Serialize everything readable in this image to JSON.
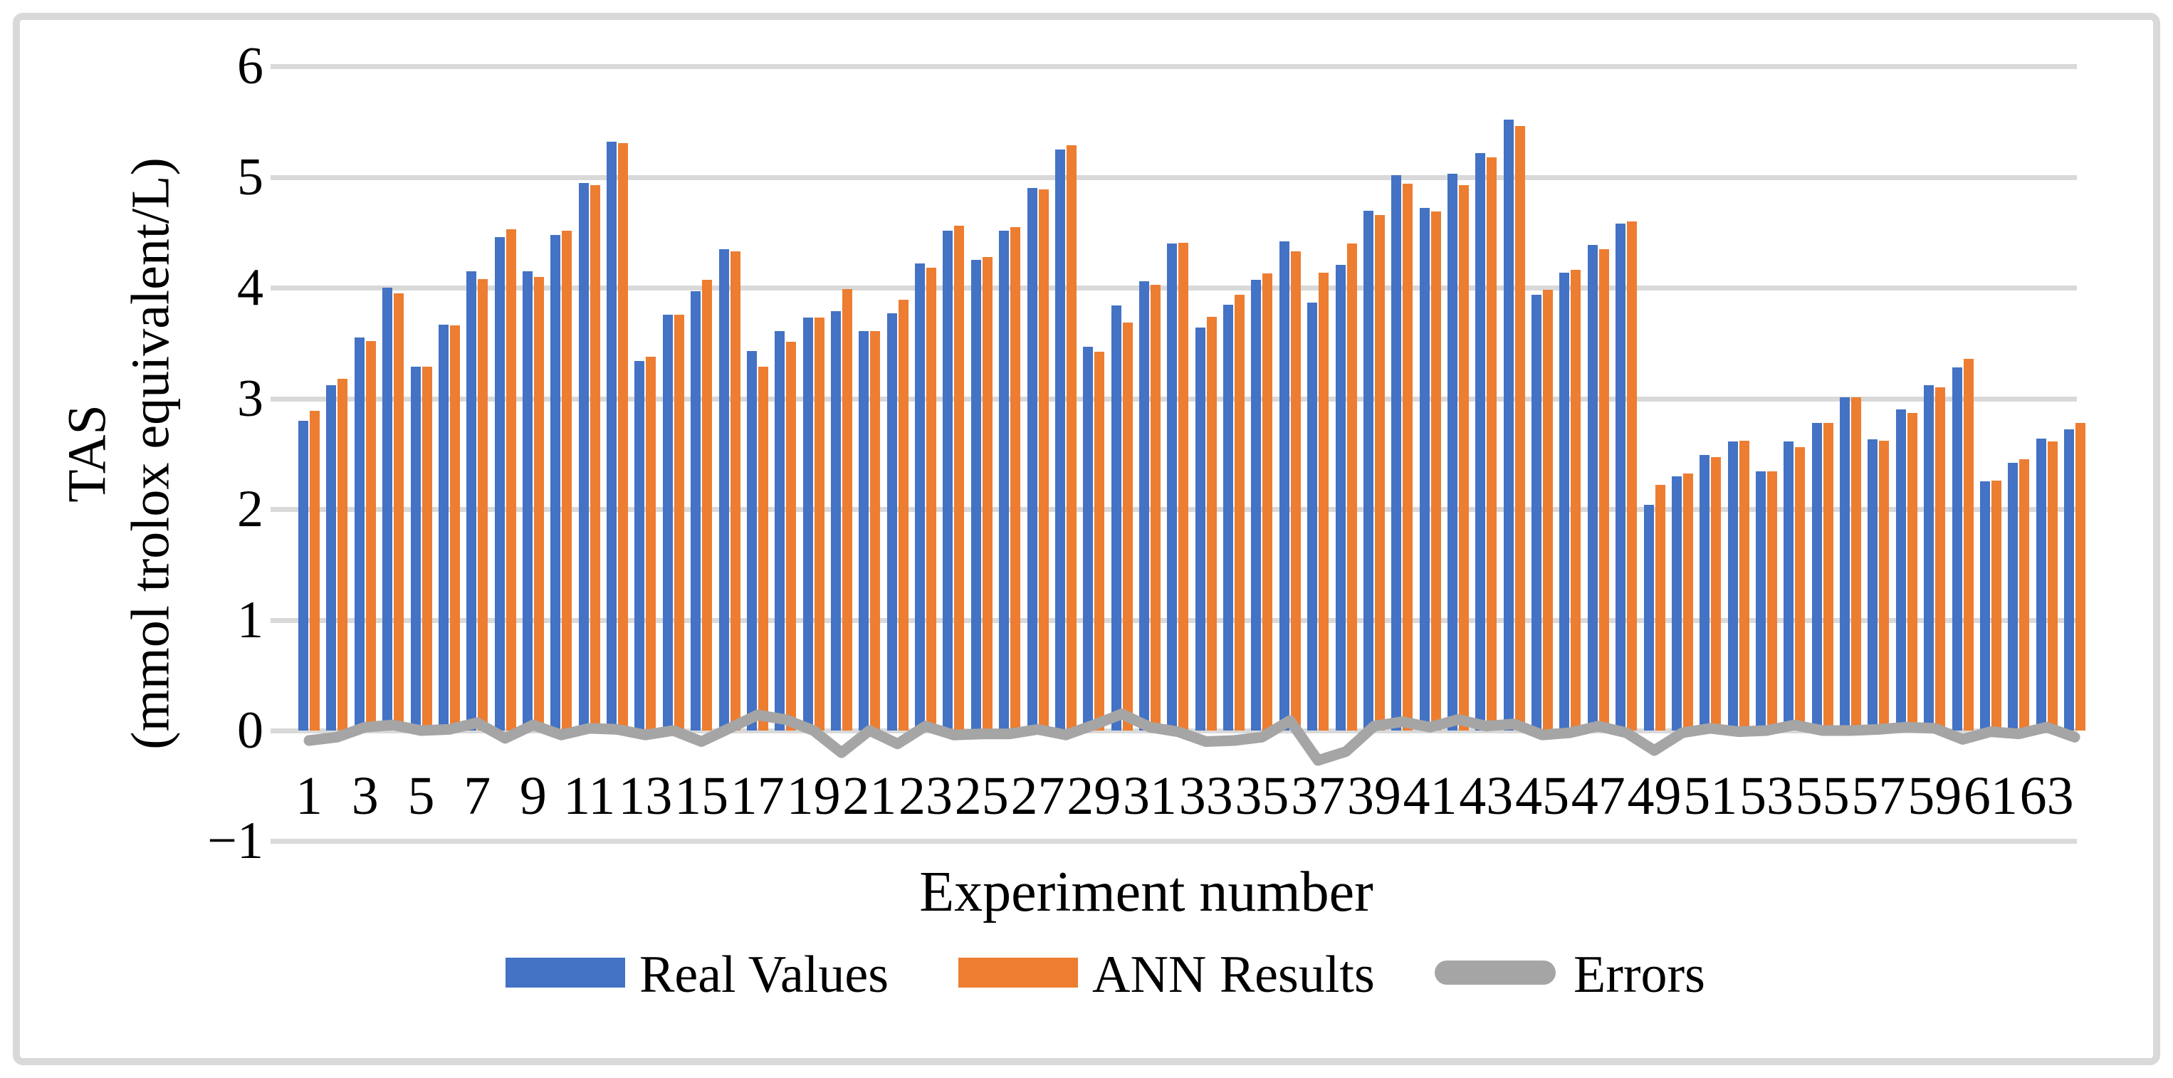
{
  "figure": {
    "x_axis_title": "Experiment number",
    "y_axis_title_line1": "TAS",
    "y_axis_title_line2": "(mmol trolox equivalent/L)"
  },
  "legend": {
    "real_label": "Real Values",
    "ann_label": "ANN Results",
    "errors_label": "Errors"
  },
  "colors": {
    "real": "#4472C4",
    "ann": "#ED7D31",
    "errors": "#A5A5A5",
    "gridline": "#D9D9D9",
    "frame": "#D9D9D9"
  },
  "y_axis": {
    "tick_labels": [
      "6",
      "5",
      "4",
      "3",
      "2",
      "1",
      "0",
      "−1"
    ],
    "tick_values": [
      6,
      5,
      4,
      3,
      2,
      1,
      0,
      -1
    ]
  },
  "x_axis": {
    "shown_tick_labels": [
      "1",
      "3",
      "5",
      "7",
      "9",
      "11",
      "13",
      "15",
      "17",
      "19",
      "21",
      "23",
      "25",
      "27",
      "29",
      "31",
      "33",
      "35",
      "37",
      "39",
      "41",
      "43",
      "45",
      "47",
      "49",
      "51",
      "53",
      "55",
      "57",
      "59",
      "61",
      "63"
    ]
  },
  "chart_data": {
    "type": "bar",
    "subtype": "grouped-bars-with-line",
    "title": "",
    "xlabel": "Experiment number",
    "ylabel": "TAS (mmol trolox equivalent/L)",
    "ylim": [
      -1,
      6
    ],
    "grid": true,
    "legend_position": "bottom",
    "categories": [
      1,
      2,
      3,
      4,
      5,
      6,
      7,
      8,
      9,
      10,
      11,
      12,
      13,
      14,
      15,
      16,
      17,
      18,
      19,
      20,
      21,
      22,
      23,
      24,
      25,
      26,
      27,
      28,
      29,
      30,
      31,
      32,
      33,
      34,
      35,
      36,
      37,
      38,
      39,
      40,
      41,
      42,
      43,
      44,
      45,
      46,
      47,
      48,
      49,
      50,
      51,
      52,
      53,
      54,
      55,
      56,
      57,
      58,
      59,
      60,
      61,
      62,
      63,
      64
    ],
    "series": [
      {
        "name": "Real Values",
        "type": "bar",
        "values": [
          2.8,
          3.12,
          3.55,
          4.0,
          3.29,
          3.67,
          4.15,
          4.46,
          4.15,
          4.48,
          4.95,
          5.32,
          3.34,
          3.76,
          3.97,
          4.35,
          3.43,
          3.61,
          3.73,
          3.79,
          3.61,
          3.77,
          4.22,
          4.52,
          4.25,
          4.52,
          4.9,
          5.25,
          3.47,
          3.84,
          4.06,
          4.4,
          3.64,
          3.85,
          4.07,
          4.42,
          3.87,
          4.21,
          4.7,
          5.02,
          4.72,
          5.03,
          5.22,
          5.52,
          3.94,
          4.14,
          4.39,
          4.58,
          2.04,
          2.3,
          2.49,
          2.61,
          2.34,
          2.61,
          2.78,
          3.01,
          2.63,
          2.9,
          3.12,
          3.28,
          2.25,
          2.42,
          2.64,
          2.72
        ]
      },
      {
        "name": "ANN Results",
        "type": "bar",
        "values": [
          2.89,
          3.18,
          3.52,
          3.95,
          3.29,
          3.66,
          4.08,
          4.53,
          4.1,
          4.52,
          4.93,
          5.31,
          3.38,
          3.76,
          4.07,
          4.33,
          3.29,
          3.51,
          3.73,
          3.99,
          3.61,
          3.89,
          4.18,
          4.56,
          4.28,
          4.55,
          4.89,
          5.29,
          3.42,
          3.69,
          4.03,
          4.41,
          3.74,
          3.94,
          4.13,
          4.33,
          4.14,
          4.4,
          4.66,
          4.94,
          4.69,
          4.93,
          5.18,
          5.46,
          3.98,
          4.16,
          4.35,
          4.6,
          2.22,
          2.32,
          2.47,
          2.62,
          2.34,
          2.56,
          2.78,
          3.01,
          2.62,
          2.87,
          3.1,
          3.36,
          2.26,
          2.45,
          2.61,
          2.78
        ]
      },
      {
        "name": "Errors",
        "type": "line",
        "values": [
          -0.09,
          -0.06,
          0.03,
          0.05,
          0.0,
          0.01,
          0.07,
          -0.07,
          0.05,
          -0.04,
          0.02,
          0.01,
          -0.04,
          0.0,
          -0.1,
          0.02,
          0.14,
          0.1,
          0.0,
          -0.2,
          0.0,
          -0.12,
          0.04,
          -0.04,
          -0.03,
          -0.03,
          0.01,
          -0.04,
          0.05,
          0.15,
          0.03,
          -0.01,
          -0.1,
          -0.09,
          -0.06,
          0.09,
          -0.27,
          -0.19,
          0.04,
          0.08,
          0.03,
          0.1,
          0.04,
          0.06,
          -0.04,
          -0.02,
          0.04,
          -0.02,
          -0.18,
          -0.02,
          0.02,
          -0.01,
          0.0,
          0.05,
          0.0,
          0.0,
          0.01,
          0.03,
          0.02,
          -0.08,
          -0.01,
          -0.03,
          0.03,
          -0.06
        ]
      }
    ]
  }
}
